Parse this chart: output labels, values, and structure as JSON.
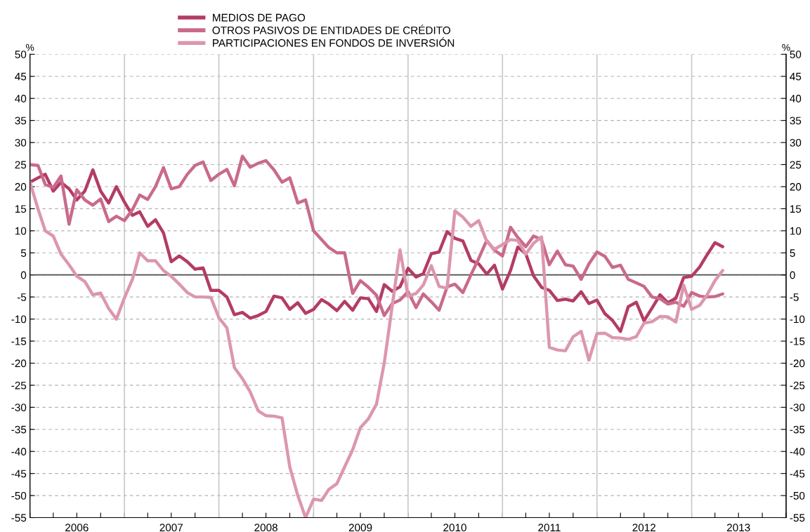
{
  "chart_data": {
    "type": "line",
    "x": [
      "2006-01",
      "2006-02",
      "2006-03",
      "2006-04",
      "2006-05",
      "2006-06",
      "2006-07",
      "2006-08",
      "2006-09",
      "2006-10",
      "2006-11",
      "2006-12",
      "2007-01",
      "2007-02",
      "2007-03",
      "2007-04",
      "2007-05",
      "2007-06",
      "2007-07",
      "2007-08",
      "2007-09",
      "2007-10",
      "2007-11",
      "2007-12",
      "2008-01",
      "2008-02",
      "2008-03",
      "2008-04",
      "2008-05",
      "2008-06",
      "2008-07",
      "2008-08",
      "2008-09",
      "2008-10",
      "2008-11",
      "2008-12",
      "2009-01",
      "2009-02",
      "2009-03",
      "2009-04",
      "2009-05",
      "2009-06",
      "2009-07",
      "2009-08",
      "2009-09",
      "2009-10",
      "2009-11",
      "2009-12",
      "2010-01",
      "2010-02",
      "2010-03",
      "2010-04",
      "2010-05",
      "2010-06",
      "2010-07",
      "2010-08",
      "2010-09",
      "2010-10",
      "2010-11",
      "2010-12",
      "2011-01",
      "2011-02",
      "2011-03",
      "2011-04",
      "2011-05",
      "2011-06",
      "2011-07",
      "2011-08",
      "2011-09",
      "2011-10",
      "2011-11",
      "2011-12",
      "2012-01",
      "2012-02",
      "2012-03",
      "2012-04",
      "2012-05",
      "2012-06",
      "2012-07",
      "2012-08",
      "2012-09",
      "2012-10",
      "2012-11",
      "2012-12",
      "2013-01",
      "2013-02",
      "2013-03",
      "2013-04",
      "2013-05"
    ],
    "series": [
      {
        "name": "MEDIOS DE PAGO",
        "color": "#b33c66",
        "values": [
          21,
          22,
          22.8,
          19,
          21,
          19.5,
          17,
          19,
          23.8,
          19,
          16.3,
          20,
          16.5,
          13.5,
          14.3,
          11,
          12.5,
          9.5,
          3,
          4.3,
          3,
          1.3,
          1.6,
          -3.5,
          -3.5,
          -5,
          -9,
          -8.5,
          -9.8,
          -9.2,
          -8.3,
          -4.8,
          -5.2,
          -7.8,
          -6.3,
          -8.7,
          -7.8,
          -5.6,
          -6.6,
          -8.1,
          -6,
          -8,
          -5.2,
          -5.4,
          -8.3,
          -2.2,
          -3.7,
          -2.7,
          1.5,
          -0.5,
          0.3,
          4.8,
          5.2,
          9.8,
          8.3,
          7.7,
          3.3,
          2.5,
          0.2,
          2.2,
          -3.2,
          1,
          6.3,
          4.8,
          -0.2,
          -2.8,
          -3.5,
          -5.8,
          -5.5,
          -5.9,
          -3.8,
          -6.5,
          -5.7,
          -8.8,
          -10.3,
          -12.8,
          -7.2,
          -6.2,
          -10.4,
          -7.5,
          -4.5,
          -6.3,
          -5.3,
          -0.6,
          -0.3,
          1.8,
          4.5,
          7.3,
          6.4
        ]
      },
      {
        "name": "OTROS PASIVOS DE ENTIDADES DE CRÉDITO",
        "color": "#c96a8c",
        "values": [
          25,
          24.8,
          20.5,
          19.8,
          22.4,
          11.5,
          19.3,
          17,
          15.8,
          17.2,
          12.1,
          13.3,
          12.3,
          14.8,
          18.1,
          17.1,
          20,
          24.3,
          19.5,
          20,
          22.8,
          24.8,
          25.6,
          21.4,
          22.8,
          23.9,
          20.2,
          26.9,
          24.4,
          25.3,
          25.9,
          23.8,
          21,
          22,
          16.3,
          17,
          10,
          8,
          6.2,
          5,
          5,
          -4.2,
          -1.3,
          -2.8,
          -4.6,
          -9.2,
          -6.5,
          -5.7,
          -3.8,
          -7.4,
          -4.3,
          -6.1,
          -8,
          -2.7,
          -2.1,
          -4,
          0,
          3.7,
          7.8,
          5.6,
          4.3,
          10.8,
          8.5,
          6.4,
          8.8,
          8,
          2.3,
          5.4,
          2.3,
          2,
          -1,
          2.5,
          5.2,
          4.2,
          1.7,
          2.2,
          -1,
          -1.8,
          -2.6,
          -5,
          -5.4,
          -6.6,
          -6.2,
          -7.1,
          -4,
          -4.8,
          -5,
          -4.9,
          -4.3
        ]
      },
      {
        "name": "PARTICIPACIONES EN FONDOS DE INVERSIÓN",
        "color": "#dc97ad",
        "values": [
          21,
          15,
          10,
          8.8,
          4.7,
          2.3,
          -0.3,
          -1.5,
          -4.5,
          -4.1,
          -7.6,
          -10,
          -5.2,
          -1,
          5,
          3.2,
          3.2,
          1,
          -0.3,
          -2.1,
          -4,
          -5,
          -5,
          -5.1,
          -9.7,
          -12,
          -21,
          -23.5,
          -26.5,
          -30.8,
          -31.9,
          -32,
          -32.4,
          -43.5,
          -50,
          -55,
          -50.8,
          -51.1,
          -48.6,
          -47.3,
          -43.5,
          -39.6,
          -34.6,
          -32.6,
          -29.3,
          -20,
          -7,
          5.7,
          -4.8,
          -4.2,
          -2.3,
          2.1,
          -2.6,
          -3,
          14.5,
          13.1,
          11,
          12.3,
          7.6,
          5.8,
          6.9,
          8,
          7.8,
          4.7,
          7.2,
          8.6,
          -16.4,
          -17,
          -17.2,
          -14,
          -12.8,
          -19.3,
          -13.3,
          -13.2,
          -14.2,
          -14.3,
          -14.6,
          -14,
          -10.9,
          -10.6,
          -9.4,
          -9.5,
          -10.7,
          -2.3,
          -7.8,
          -6.9,
          -4.6,
          -1.3,
          1
        ]
      }
    ],
    "ylabel": "%",
    "y2label": "%",
    "xlim": [
      "2006-01",
      "2014-01"
    ],
    "xticks": [
      {
        "value": "2006-01",
        "label": null
      },
      {
        "value": "2006-04",
        "label": null
      },
      {
        "value": "2006-07",
        "label": "2006"
      },
      {
        "value": "2006-10",
        "label": null
      },
      {
        "value": "2007-01",
        "label": null
      },
      {
        "value": "2007-04",
        "label": null
      },
      {
        "value": "2007-07",
        "label": "2007"
      },
      {
        "value": "2007-10",
        "label": null
      },
      {
        "value": "2008-01",
        "label": null
      },
      {
        "value": "2008-04",
        "label": null
      },
      {
        "value": "2008-07",
        "label": "2008"
      },
      {
        "value": "2008-10",
        "label": null
      },
      {
        "value": "2009-01",
        "label": null
      },
      {
        "value": "2009-04",
        "label": null
      },
      {
        "value": "2009-07",
        "label": "2009"
      },
      {
        "value": "2009-10",
        "label": null
      },
      {
        "value": "2010-01",
        "label": null
      },
      {
        "value": "2010-04",
        "label": null
      },
      {
        "value": "2010-07",
        "label": "2010"
      },
      {
        "value": "2010-10",
        "label": null
      },
      {
        "value": "2011-01",
        "label": null
      },
      {
        "value": "2011-04",
        "label": null
      },
      {
        "value": "2011-07",
        "label": "2011"
      },
      {
        "value": "2011-10",
        "label": null
      },
      {
        "value": "2012-01",
        "label": null
      },
      {
        "value": "2012-04",
        "label": null
      },
      {
        "value": "2012-07",
        "label": "2012"
      },
      {
        "value": "2012-10",
        "label": null
      },
      {
        "value": "2013-01",
        "label": null
      },
      {
        "value": "2013-04",
        "label": null
      },
      {
        "value": "2013-07",
        "label": "2013"
      },
      {
        "value": "2013-10",
        "label": null
      },
      {
        "value": "2014-01",
        "label": null
      }
    ],
    "ylim": [
      -55,
      50
    ],
    "yticks": [
      -55,
      -50,
      -45,
      -40,
      -35,
      -30,
      -25,
      -20,
      -15,
      -10,
      -5,
      0,
      5,
      10,
      15,
      20,
      25,
      30,
      35,
      40,
      45,
      50
    ],
    "y2lim": [
      -55,
      50
    ],
    "y2ticks": [
      -55,
      -50,
      -45,
      -40,
      -35,
      -30,
      -25,
      -20,
      -15,
      -10,
      -5,
      0,
      5,
      10,
      15,
      20,
      25,
      30,
      35,
      40,
      45,
      50
    ],
    "ref_lines": [
      {
        "axis": "y",
        "value": 0,
        "color": "#4d4d4d"
      },
      {
        "axis": "x",
        "value": "2007-01",
        "color": "#c8c8c8"
      },
      {
        "axis": "x",
        "value": "2008-01",
        "color": "#c8c8c8"
      },
      {
        "axis": "x",
        "value": "2009-01",
        "color": "#c8c8c8"
      },
      {
        "axis": "x",
        "value": "2010-01",
        "color": "#c8c8c8"
      },
      {
        "axis": "x",
        "value": "2011-01",
        "color": "#c8c8c8"
      },
      {
        "axis": "x",
        "value": "2012-01",
        "color": "#c8c8c8"
      },
      {
        "axis": "x",
        "value": "2013-01",
        "color": "#c8c8c8"
      }
    ],
    "grid": "y",
    "legend": "top",
    "marker": "none",
    "line_style": "solid"
  }
}
